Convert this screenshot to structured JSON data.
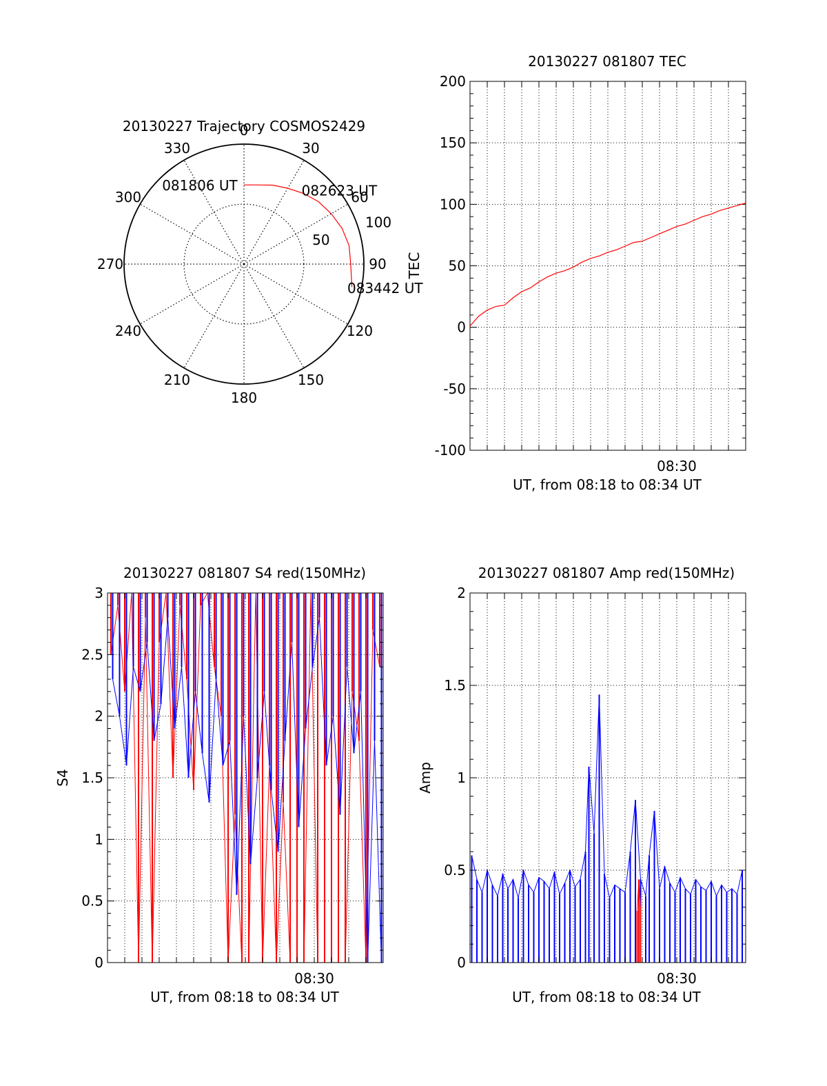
{
  "colors": {
    "red": "#ff0000",
    "blue": "#0000ff",
    "axis": "#000000",
    "grid": "#000000"
  },
  "chart_data": [
    {
      "id": "trajectory",
      "type": "polar",
      "title": "20130227 Trajectory COSMOS2429",
      "angle_direction": "clockwise",
      "zero_at": "top",
      "angle_labels": [
        "0",
        "30",
        "60",
        "90",
        "120",
        "150",
        "180",
        "210",
        "240",
        "270",
        "300",
        "330"
      ],
      "radius_labels": [
        "50",
        "100"
      ],
      "radius_max": 100,
      "grid": true,
      "track": {
        "color": "red",
        "points": [
          {
            "az": 0,
            "r": 66
          },
          {
            "az": 10,
            "r": 67
          },
          {
            "az": 20,
            "r": 70
          },
          {
            "az": 30,
            "r": 73
          },
          {
            "az": 40,
            "r": 77
          },
          {
            "az": 50,
            "r": 81
          },
          {
            "az": 60,
            "r": 84
          },
          {
            "az": 70,
            "r": 87
          },
          {
            "az": 80,
            "r": 89
          },
          {
            "az": 90,
            "r": 89
          },
          {
            "az": 102,
            "r": 92
          }
        ],
        "labels": [
          {
            "text": "081806 UT",
            "az": -2,
            "r": 66
          },
          {
            "text": "082623 UT",
            "az": 41,
            "r": 82
          },
          {
            "text": "083442 UT",
            "az": 102,
            "r": 94
          }
        ]
      }
    },
    {
      "id": "tec",
      "type": "line",
      "title": "20130227 081807 TEC",
      "xlabel": "UT, from 08:18 to 08:34 UT",
      "ylabel": "TEC",
      "xlim": [
        0,
        16
      ],
      "ylim": [
        -100,
        200
      ],
      "xticks": [
        {
          "x": 12,
          "label": "08:30"
        }
      ],
      "yticks": [
        -100,
        -50,
        0,
        50,
        100,
        150,
        200
      ],
      "grid": true,
      "series": [
        {
          "color": "red",
          "x": [
            0,
            0.5,
            1,
            1.5,
            2,
            2.5,
            3,
            3.5,
            4,
            4.5,
            5,
            5.5,
            6,
            6.5,
            7,
            7.5,
            8,
            8.5,
            9,
            9.5,
            10,
            10.5,
            11,
            11.5,
            12,
            12.5,
            13,
            13.5,
            14,
            14.5,
            15,
            15.5,
            16
          ],
          "y": [
            1,
            9,
            14,
            17,
            18,
            24,
            29,
            32,
            37,
            41,
            44,
            46,
            49,
            53,
            56,
            58,
            61,
            63,
            66,
            69,
            70,
            73,
            76,
            79,
            82,
            84,
            87,
            90,
            92,
            95,
            97,
            99,
            101
          ]
        }
      ]
    },
    {
      "id": "s4",
      "type": "line",
      "title": "20130227 081807 S4 red(150MHz)",
      "xlabel": "UT, from 08:18 to 08:34 UT",
      "ylabel": "S4",
      "xlim": [
        0,
        16
      ],
      "ylim": [
        0,
        3
      ],
      "xticks": [
        {
          "x": 12,
          "label": "08:30"
        }
      ],
      "yticks": [
        "0",
        "0.5",
        "1",
        "1.5",
        "2",
        "2.5",
        "3"
      ],
      "grid": true,
      "series": [
        {
          "color": "red",
          "x": [
            0.2,
            0.6,
            1.0,
            1.4,
            1.8,
            2.2,
            2.6,
            3.0,
            3.4,
            3.8,
            4.2,
            4.6,
            5.0,
            5.4,
            5.8,
            6.2,
            6.6,
            7.0,
            7.4,
            7.8,
            8.2,
            8.6,
            9.0,
            9.4,
            9.8,
            10.2,
            10.6,
            11.0,
            11.4,
            11.8,
            12.2,
            12.6,
            13.0,
            13.4,
            13.8,
            14.2,
            14.6,
            15.0,
            15.4,
            15.8
          ],
          "y": [
            2.5,
            2.9,
            2.2,
            3.0,
            0,
            2.8,
            0,
            2.6,
            3.0,
            1.5,
            2.9,
            2.3,
            1.4,
            2.9,
            3.0,
            2.4,
            2.0,
            0,
            1.2,
            0,
            0,
            3.0,
            0,
            1.6,
            0,
            1.3,
            0,
            0,
            0,
            3.0,
            0,
            0,
            0,
            0,
            0,
            2.2,
            1.8,
            0,
            2.7,
            2.4
          ]
        },
        {
          "color": "blue",
          "x": [
            0.3,
            0.7,
            1.1,
            1.5,
            1.9,
            2.3,
            2.7,
            3.1,
            3.5,
            3.9,
            4.3,
            4.7,
            5.1,
            5.5,
            5.9,
            6.3,
            6.7,
            7.1,
            7.5,
            7.9,
            8.3,
            8.7,
            9.1,
            9.5,
            9.9,
            10.3,
            10.7,
            11.1,
            11.5,
            11.9,
            12.3,
            12.7,
            13.1,
            13.5,
            13.9,
            14.3,
            14.7,
            15.1,
            15.5,
            15.9
          ],
          "y": [
            2.3,
            2.0,
            1.6,
            2.4,
            2.2,
            2.6,
            1.8,
            2.1,
            2.8,
            1.9,
            2.4,
            1.5,
            2.2,
            1.7,
            1.3,
            2.3,
            1.6,
            1.8,
            0.55,
            2.0,
            0.8,
            1.5,
            2.2,
            1.4,
            0.9,
            1.8,
            2.6,
            1.1,
            1.9,
            2.4,
            2.8,
            1.6,
            2.0,
            1.2,
            2.4,
            1.7,
            2.2,
            0,
            1.8,
            0
          ]
        }
      ]
    },
    {
      "id": "amp",
      "type": "line",
      "title": "20130227 081807 Amp red(150MHz)",
      "xlabel": "UT, from 08:18 to 08:34 UT",
      "ylabel": "Amp",
      "xlim": [
        0,
        16
      ],
      "ylim": [
        0,
        2
      ],
      "xticks": [
        {
          "x": 12,
          "label": "08:30"
        }
      ],
      "yticks": [
        "0",
        "0.5",
        "1",
        "1.5",
        "2"
      ],
      "grid": true,
      "series": [
        {
          "color": "blue",
          "x": [
            0.1,
            0.4,
            0.7,
            1.0,
            1.3,
            1.6,
            1.9,
            2.2,
            2.5,
            2.8,
            3.1,
            3.4,
            3.7,
            4.0,
            4.3,
            4.6,
            4.9,
            5.2,
            5.5,
            5.8,
            6.1,
            6.4,
            6.7,
            6.9,
            7.2,
            7.5,
            7.8,
            8.1,
            8.4,
            8.7,
            9.0,
            9.3,
            9.6,
            9.9,
            10.2,
            10.4,
            10.7,
            11.0,
            11.3,
            11.6,
            11.9,
            12.2,
            12.5,
            12.8,
            13.1,
            13.4,
            13.7,
            14.0,
            14.3,
            14.6,
            14.9,
            15.2,
            15.5,
            15.8
          ],
          "y": [
            0.58,
            0.45,
            0.38,
            0.5,
            0.42,
            0.36,
            0.48,
            0.4,
            0.45,
            0.35,
            0.5,
            0.42,
            0.38,
            0.46,
            0.44,
            0.4,
            0.49,
            0.37,
            0.43,
            0.5,
            0.41,
            0.45,
            0.6,
            1.06,
            0.7,
            1.45,
            0.48,
            0.35,
            0.42,
            0.4,
            0.38,
            0.6,
            0.88,
            0.45,
            0.36,
            0.58,
            0.82,
            0.4,
            0.52,
            0.43,
            0.38,
            0.46,
            0.4,
            0.37,
            0.45,
            0.41,
            0.39,
            0.44,
            0.36,
            0.42,
            0.38,
            0.4,
            0.37,
            0.5
          ]
        },
        {
          "color": "red",
          "x": [
            9.7,
            9.8,
            9.9
          ],
          "y": [
            0.28,
            0.45,
            0.3
          ]
        }
      ]
    }
  ]
}
